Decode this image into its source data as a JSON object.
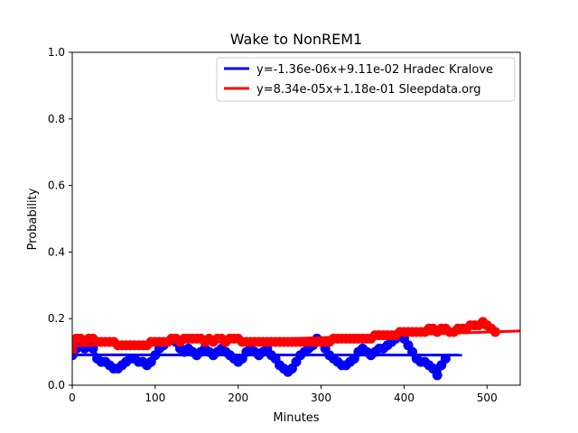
{
  "chart_data": {
    "type": "scatter",
    "title": "Wake to NonREM1",
    "xlabel": "Minutes",
    "ylabel": "Probability",
    "xlim": [
      0,
      540
    ],
    "ylim": [
      0,
      1.0
    ],
    "xticks": [
      "0",
      "100",
      "200",
      "300",
      "400",
      "500"
    ],
    "yticks": [
      "0.0",
      "0.2",
      "0.4",
      "0.6",
      "0.8",
      "1.0"
    ],
    "legend_position": "top-right",
    "series": [
      {
        "name": "Hradec Kralove",
        "color": "#0000ff",
        "x": [
          0,
          5,
          10,
          15,
          20,
          25,
          30,
          35,
          40,
          45,
          50,
          55,
          60,
          65,
          70,
          75,
          80,
          85,
          90,
          95,
          100,
          105,
          110,
          115,
          120,
          125,
          130,
          135,
          140,
          145,
          150,
          155,
          160,
          165,
          170,
          175,
          180,
          185,
          190,
          195,
          200,
          205,
          210,
          215,
          220,
          225,
          230,
          235,
          240,
          245,
          250,
          255,
          260,
          265,
          270,
          275,
          280,
          285,
          290,
          295,
          300,
          305,
          310,
          315,
          320,
          325,
          330,
          335,
          340,
          345,
          350,
          355,
          360,
          365,
          370,
          375,
          380,
          385,
          390,
          395,
          400,
          405,
          410,
          415,
          420,
          425,
          430,
          435,
          440,
          445,
          450
        ],
        "y": [
          0.09,
          0.11,
          0.12,
          0.11,
          0.12,
          0.11,
          0.08,
          0.07,
          0.07,
          0.06,
          0.05,
          0.05,
          0.06,
          0.07,
          0.08,
          0.08,
          0.07,
          0.07,
          0.06,
          0.07,
          0.09,
          0.11,
          0.12,
          0.13,
          0.14,
          0.13,
          0.11,
          0.1,
          0.11,
          0.1,
          0.09,
          0.1,
          0.11,
          0.1,
          0.09,
          0.1,
          0.11,
          0.1,
          0.09,
          0.08,
          0.07,
          0.08,
          0.1,
          0.11,
          0.1,
          0.09,
          0.1,
          0.11,
          0.09,
          0.08,
          0.06,
          0.05,
          0.04,
          0.05,
          0.07,
          0.09,
          0.1,
          0.11,
          0.12,
          0.14,
          0.13,
          0.11,
          0.09,
          0.08,
          0.07,
          0.06,
          0.06,
          0.07,
          0.08,
          0.1,
          0.11,
          0.1,
          0.09,
          0.1,
          0.11,
          0.11,
          0.12,
          0.13,
          0.14,
          0.15,
          0.14,
          0.12,
          0.1,
          0.08,
          0.07,
          0.07,
          0.06,
          0.05,
          0.03,
          0.06,
          0.08
        ],
        "trend": {
          "label": "y=-1.36e-06x+9.11e-02 Hradec Kralove",
          "slope": -1.36e-06,
          "intercept": 0.0911,
          "x_range": [
            0,
            470
          ]
        }
      },
      {
        "name": "Sleepdata.org",
        "color": "#ff0000",
        "x": [
          0,
          5,
          10,
          15,
          20,
          25,
          30,
          35,
          40,
          45,
          50,
          55,
          60,
          65,
          70,
          75,
          80,
          85,
          90,
          95,
          100,
          105,
          110,
          115,
          120,
          125,
          130,
          135,
          140,
          145,
          150,
          155,
          160,
          165,
          170,
          175,
          180,
          185,
          190,
          195,
          200,
          205,
          210,
          215,
          220,
          225,
          230,
          235,
          240,
          245,
          250,
          255,
          260,
          265,
          270,
          275,
          280,
          285,
          290,
          295,
          300,
          305,
          310,
          315,
          320,
          325,
          330,
          335,
          340,
          345,
          350,
          355,
          360,
          365,
          370,
          375,
          380,
          385,
          390,
          395,
          400,
          405,
          410,
          415,
          420,
          425,
          430,
          435,
          440,
          445,
          450,
          455,
          460,
          465,
          470,
          475,
          480,
          485,
          490,
          495,
          500,
          505,
          510
        ],
        "y": [
          0.1,
          0.14,
          0.14,
          0.13,
          0.14,
          0.14,
          0.13,
          0.13,
          0.13,
          0.13,
          0.13,
          0.12,
          0.12,
          0.12,
          0.12,
          0.12,
          0.12,
          0.12,
          0.12,
          0.13,
          0.13,
          0.13,
          0.13,
          0.13,
          0.14,
          0.14,
          0.13,
          0.14,
          0.14,
          0.14,
          0.14,
          0.14,
          0.13,
          0.14,
          0.13,
          0.14,
          0.14,
          0.13,
          0.14,
          0.14,
          0.14,
          0.13,
          0.13,
          0.13,
          0.13,
          0.13,
          0.13,
          0.13,
          0.13,
          0.13,
          0.13,
          0.13,
          0.13,
          0.13,
          0.13,
          0.13,
          0.13,
          0.13,
          0.13,
          0.13,
          0.13,
          0.13,
          0.13,
          0.14,
          0.14,
          0.14,
          0.14,
          0.14,
          0.14,
          0.14,
          0.14,
          0.14,
          0.14,
          0.15,
          0.15,
          0.15,
          0.15,
          0.15,
          0.15,
          0.16,
          0.16,
          0.16,
          0.16,
          0.16,
          0.16,
          0.16,
          0.17,
          0.17,
          0.16,
          0.17,
          0.17,
          0.16,
          0.16,
          0.17,
          0.17,
          0.17,
          0.18,
          0.18,
          0.18,
          0.19,
          0.18,
          0.17,
          0.16
        ],
        "trend": {
          "label": "y=8.34e-05x+1.18e-01 Sleepdata.org",
          "slope": 8.34e-05,
          "intercept": 0.118,
          "x_range": [
            0,
            540
          ]
        }
      }
    ]
  }
}
